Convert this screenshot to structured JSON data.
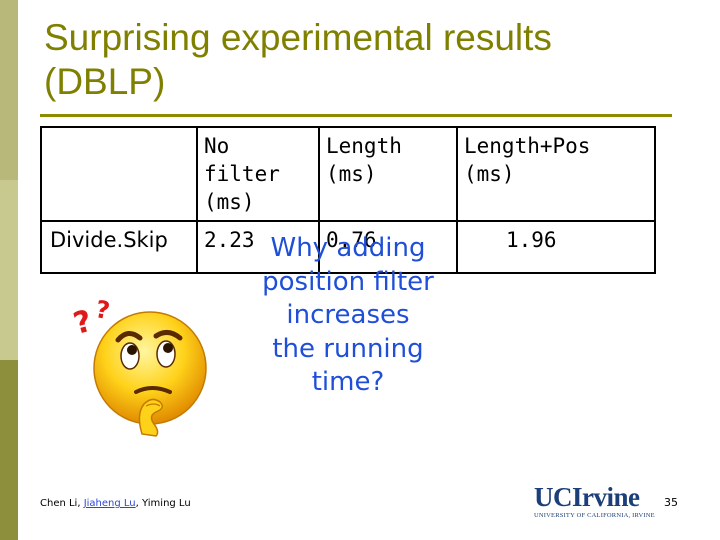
{
  "slide": {
    "title": "Surprising experimental results (DBLP)",
    "accent_color": "#808000",
    "page_number": "35"
  },
  "table": {
    "header": [
      "",
      "No filter (ms)",
      "Length (ms)",
      "Length+Pos (ms)"
    ],
    "rows": [
      [
        "Divide.Skip",
        "2.23",
        "0.76",
        "1.96"
      ]
    ]
  },
  "question": {
    "text": "Why adding position filter increases the running time?",
    "color": "#1f4fd8"
  },
  "footer": {
    "author_1": "Chen Li, ",
    "author_2_link": "Jiaheng Lu",
    "author_3": ", Yiming Lu"
  },
  "logo": {
    "wordmark": "UCIrvine",
    "subtitle": "UNIVERSITY OF CALIFORNIA, IRVINE"
  },
  "icons": [
    "thinking-face-icon",
    "question-marks-icon"
  ]
}
